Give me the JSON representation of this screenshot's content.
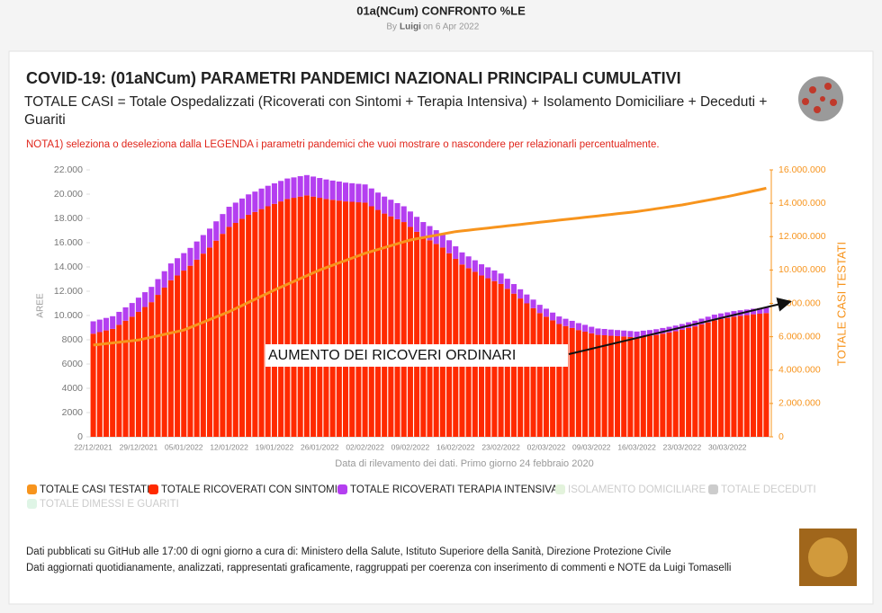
{
  "header": {
    "title": "01a(NCum) CONFRONTO %LE",
    "by": "By",
    "author": "Luigi",
    "date": "on 6 Apr 2022"
  },
  "chart_data": {
    "type": "stacked_bar_line",
    "title": "COVID-19: (01aNCum) PARAMETRI PANDEMICI NAZIONALI PRINCIPALI CUMULATIVI",
    "subtitle": "TOTALE CASI = Totale Ospedalizzati (Ricoverati con Sintomi + Terapia Intensiva) + Isolamento Domiciliare + Deceduti + Guariti",
    "note": "NOTA1) seleziona o deseleziona dalla LEGENDA i parametri pandemici che vuoi mostrare o nascondere per relazionarli percentualmente.",
    "x_label": "Data di rilevamento dei dati. Primo giorno 24 febbraio 2020",
    "y_label": "AREE",
    "y2_label": "TOTALE CASI TESTATI",
    "annotation": "AUMENTO DEI RICOVERI ORDINARI",
    "categories": [
      "22/12/2021",
      null,
      null,
      null,
      null,
      null,
      null,
      "29/12/2021",
      null,
      null,
      null,
      null,
      null,
      null,
      "05/01/2022",
      null,
      null,
      null,
      null,
      null,
      null,
      "12/01/2022",
      null,
      null,
      null,
      null,
      null,
      null,
      "19/01/2022",
      null,
      null,
      null,
      null,
      null,
      null,
      "26/01/2022",
      null,
      null,
      null,
      null,
      null,
      null,
      "02/02/2022",
      null,
      null,
      null,
      null,
      null,
      null,
      "09/02/2022",
      null,
      null,
      null,
      null,
      null,
      null,
      "16/02/2022",
      null,
      null,
      null,
      null,
      null,
      null,
      "23/02/2022",
      null,
      null,
      null,
      null,
      null,
      null,
      "02/03/2022",
      null,
      null,
      null,
      null,
      null,
      null,
      "09/03/2022",
      null,
      null,
      null,
      null,
      null,
      null,
      "16/03/2022",
      null,
      null,
      null,
      null,
      null,
      null,
      "23/03/2022",
      null,
      null,
      null,
      null,
      null,
      null,
      "30/03/2022",
      null,
      null,
      null,
      null,
      null,
      null
    ],
    "series": [
      {
        "name": "TOTALE CASI TESTATI",
        "color": "#f7941d",
        "kind": "line",
        "axis": "y2",
        "values": [
          5500000,
          5543000,
          5586000,
          5629000,
          5671000,
          5714000,
          5757000,
          5800000,
          5886000,
          5971000,
          6057000,
          6143000,
          6229000,
          6314000,
          6400000,
          6557000,
          6714000,
          6871000,
          7029000,
          7186000,
          7343000,
          7500000,
          7686000,
          7871000,
          8057000,
          8243000,
          8429000,
          8614000,
          8800000,
          8971000,
          9143000,
          9314000,
          9486000,
          9657000,
          9829000,
          10000000,
          10143000,
          10286000,
          10429000,
          10571000,
          10714000,
          10857000,
          11000000,
          11114000,
          11229000,
          11343000,
          11457000,
          11571000,
          11686000,
          11800000,
          11871000,
          11943000,
          12014000,
          12086000,
          12157000,
          12229000,
          12300000,
          12343000,
          12386000,
          12429000,
          12471000,
          12514000,
          12557000,
          12600000,
          12643000,
          12686000,
          12729000,
          12771000,
          12814000,
          12857000,
          12900000,
          12943000,
          12986000,
          13029000,
          13071000,
          13114000,
          13157000,
          13200000,
          13243000,
          13286000,
          13329000,
          13371000,
          13414000,
          13457000,
          13500000,
          13557000,
          13614000,
          13671000,
          13729000,
          13786000,
          13843000,
          13900000,
          13971000,
          14043000,
          14114000,
          14186000,
          14257000,
          14329000,
          14400000,
          14483000,
          14567000,
          14650000,
          14733000,
          14817000,
          14900000
        ]
      },
      {
        "name": "TOTALE RICOVERATI CON SINTOMI",
        "color": "#ff2a00",
        "kind": "bar",
        "values": [
          8500,
          8630,
          8770,
          8900,
          9230,
          9570,
          9900,
          10300,
          10700,
          11100,
          11700,
          12300,
          12900,
          13300,
          13700,
          14100,
          14600,
          15100,
          15600,
          16170,
          16730,
          17300,
          17630,
          17970,
          18300,
          18530,
          18770,
          19000,
          19200,
          19400,
          19600,
          19700,
          19800,
          19900,
          19800,
          19700,
          19600,
          19530,
          19470,
          19400,
          19370,
          19330,
          19300,
          19000,
          18700,
          18400,
          18170,
          17930,
          17700,
          17300,
          16900,
          16500,
          16200,
          15900,
          15600,
          15130,
          14670,
          14200,
          13900,
          13600,
          13300,
          13070,
          12830,
          12600,
          12200,
          11800,
          11400,
          11000,
          10600,
          10200,
          9900,
          9600,
          9300,
          9130,
          8970,
          8800,
          8670,
          8530,
          8400,
          8370,
          8330,
          8300,
          8270,
          8230,
          8200,
          8270,
          8330,
          8400,
          8500,
          8600,
          8700,
          8830,
          8970,
          9100,
          9270,
          9430,
          9600,
          9700,
          9800,
          9900,
          9970,
          10030,
          10100,
          10150,
          10200
        ]
      },
      {
        "name": "TOTALE RICOVERATI TERAPIA INTENSIVA",
        "color": "#b43ff0",
        "kind": "bar",
        "values": [
          1020,
          1030,
          1030,
          1040,
          1070,
          1100,
          1130,
          1170,
          1220,
          1260,
          1300,
          1350,
          1390,
          1420,
          1440,
          1470,
          1500,
          1530,
          1560,
          1590,
          1630,
          1660,
          1670,
          1670,
          1680,
          1680,
          1690,
          1690,
          1690,
          1690,
          1690,
          1680,
          1680,
          1670,
          1650,
          1630,
          1610,
          1590,
          1570,
          1550,
          1530,
          1520,
          1500,
          1470,
          1430,
          1400,
          1370,
          1330,
          1300,
          1270,
          1230,
          1200,
          1170,
          1130,
          1100,
          1070,
          1030,
          1000,
          970,
          950,
          920,
          900,
          880,
          860,
          830,
          790,
          760,
          730,
          710,
          680,
          660,
          640,
          620,
          600,
          590,
          570,
          560,
          540,
          530,
          520,
          510,
          500,
          490,
          490,
          480,
          480,
          470,
          470,
          470,
          470,
          470,
          470,
          470,
          470,
          470,
          470,
          470,
          470,
          460,
          460,
          460,
          460,
          460,
          460,
          460
        ]
      }
    ],
    "hidden_legend": [
      {
        "name": "ISOLAMENTO DOMICILIARE",
        "color": "#e3f3dc"
      },
      {
        "name": "TOTALE DECEDUTI",
        "color": "#cccccc"
      },
      {
        "name": "TOTALE DIMESSI E GUARITI",
        "color": "#dff5e6"
      }
    ],
    "ylim": [
      0,
      22000
    ],
    "yticks": [
      0,
      2000,
      4000,
      6000,
      8000,
      {
        "value": 10000,
        "label": "10.000"
      },
      {
        "value": 12000,
        "label": "12.000"
      },
      {
        "value": 14000,
        "label": "14.000"
      },
      {
        "value": 16000,
        "label": "16.000"
      },
      {
        "value": 18000,
        "label": "18.000"
      },
      {
        "value": 20000,
        "label": "20.000"
      },
      {
        "value": 22000,
        "label": "22.000"
      }
    ],
    "y2lim": [
      0,
      16000000
    ],
    "y2ticks": [
      0,
      {
        "value": 2000000,
        "label": "2.000.000"
      },
      {
        "value": 4000000,
        "label": "4.000.000"
      },
      {
        "value": 6000000,
        "label": "6.000.000"
      },
      {
        "value": 8000000,
        "label": "8.000.000"
      },
      {
        "value": 10000000,
        "label": "10.000.000"
      },
      {
        "value": 12000000,
        "label": "12.000.000"
      },
      {
        "value": 14000000,
        "label": "14.000.000"
      },
      {
        "value": 16000000,
        "label": "16.000.000"
      }
    ],
    "grid": false
  },
  "footer": {
    "line1": "Dati pubblicati su GitHub alle 17:00 di ogni giorno a cura di: Ministero della Salute, Istituto Superiore della Sanità, Direzione Protezione Civile",
    "line2": "Dati aggiornati quotidianamente, analizzati, rappresentati graficamente, raggruppati per coerenza con inserimento di commenti e NOTE da Luigi Tomaselli"
  }
}
